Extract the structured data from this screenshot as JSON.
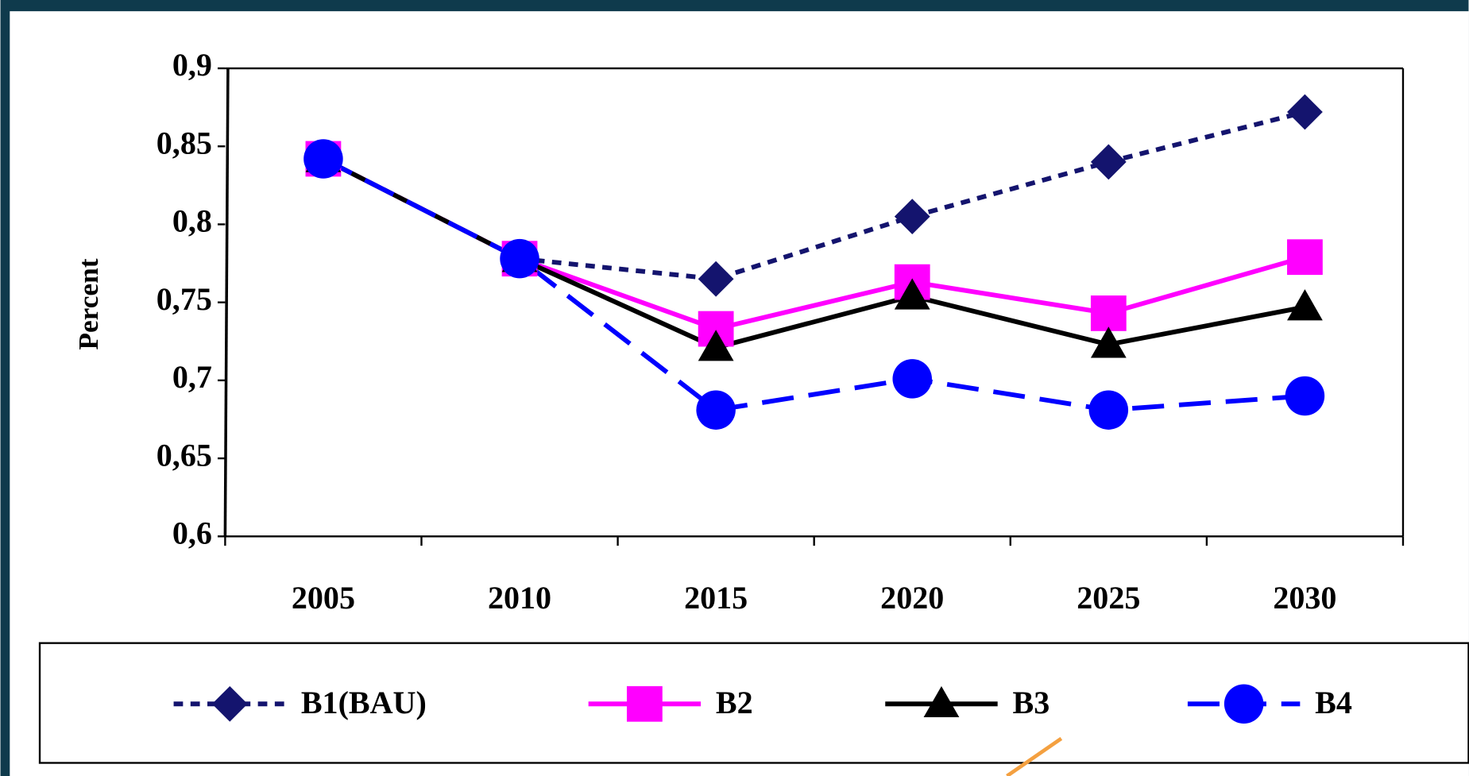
{
  "chart_data": {
    "type": "line",
    "y_label": "Percent",
    "categories": [
      "2005",
      "2010",
      "2015",
      "2020",
      "2025",
      "2030"
    ],
    "series": [
      {
        "name": "B1(BAU)",
        "color": "#14146e",
        "marker": "diamond",
        "dash": "short",
        "values": [
          0.842,
          0.778,
          0.765,
          0.805,
          0.84,
          0.872
        ]
      },
      {
        "name": "B2",
        "color": "#ff00ff",
        "marker": "square",
        "dash": "solid",
        "values": [
          0.842,
          0.778,
          0.733,
          0.763,
          0.743,
          0.779
        ]
      },
      {
        "name": "B3",
        "color": "#000000",
        "marker": "triangle",
        "dash": "solid",
        "values": [
          0.842,
          0.778,
          0.721,
          0.754,
          0.723,
          0.747
        ]
      },
      {
        "name": "B4",
        "color": "#0000ff",
        "marker": "circle",
        "dash": "long",
        "values": [
          0.842,
          0.778,
          0.681,
          0.701,
          0.681,
          0.69
        ]
      }
    ],
    "ylim": [
      0.6,
      0.9
    ],
    "yticks": [
      {
        "value": 0.6,
        "label": "0,6"
      },
      {
        "value": 0.65,
        "label": "0,65"
      },
      {
        "value": 0.7,
        "label": "0,7"
      },
      {
        "value": 0.75,
        "label": "0,75"
      },
      {
        "value": 0.8,
        "label": "0,8"
      },
      {
        "value": 0.85,
        "label": "0,85"
      },
      {
        "value": 0.9,
        "label": "0,9"
      }
    ],
    "grid": false,
    "legend": "bottom"
  }
}
